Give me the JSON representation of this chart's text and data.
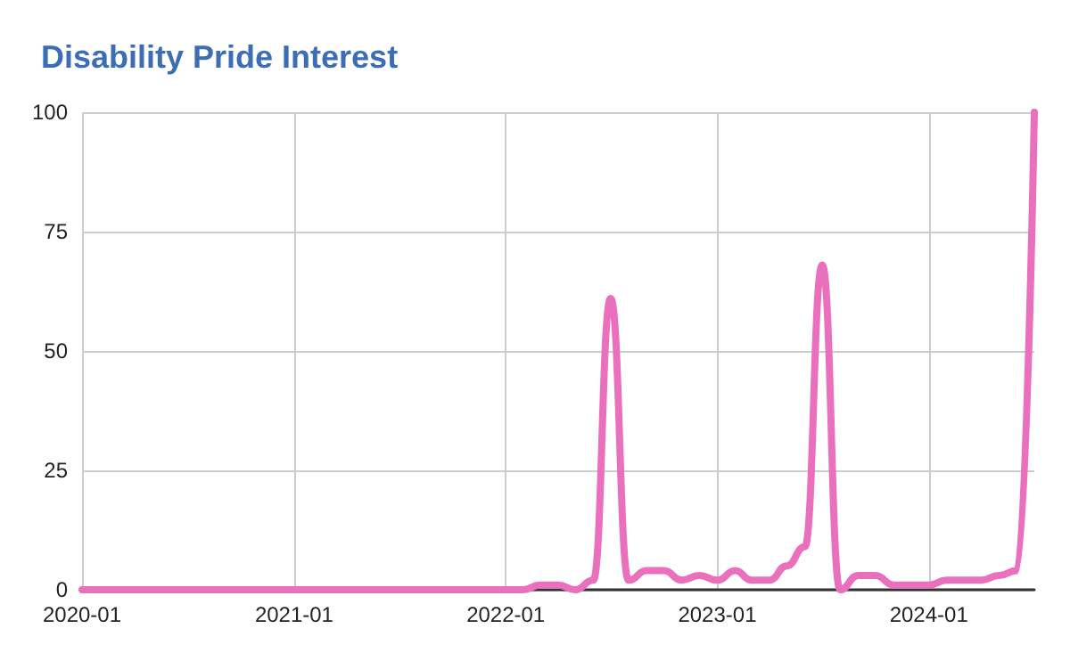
{
  "chart_data": {
    "type": "line",
    "title": "Disability Pride Interest",
    "x": [
      "2020-01",
      "2020-02",
      "2020-03",
      "2020-04",
      "2020-05",
      "2020-06",
      "2020-07",
      "2020-08",
      "2020-09",
      "2020-10",
      "2020-11",
      "2020-12",
      "2021-01",
      "2021-02",
      "2021-03",
      "2021-04",
      "2021-05",
      "2021-06",
      "2021-07",
      "2021-08",
      "2021-09",
      "2021-10",
      "2021-11",
      "2021-12",
      "2022-01",
      "2022-02",
      "2022-03",
      "2022-04",
      "2022-05",
      "2022-06",
      "2022-07",
      "2022-08",
      "2022-09",
      "2022-10",
      "2022-11",
      "2022-12",
      "2023-01",
      "2023-02",
      "2023-03",
      "2023-04",
      "2023-05",
      "2023-06",
      "2023-07",
      "2023-08",
      "2023-09",
      "2023-10",
      "2023-11",
      "2023-12",
      "2024-01",
      "2024-02",
      "2024-03",
      "2024-04",
      "2024-05",
      "2024-06",
      "2024-07"
    ],
    "series": [
      {
        "color": "#ea6fbd",
        "values": [
          0,
          0,
          0,
          0,
          0,
          0,
          0,
          0,
          0,
          0,
          0,
          0,
          0,
          0,
          0,
          0,
          0,
          0,
          0,
          0,
          0,
          0,
          0,
          0,
          0,
          0,
          1,
          1,
          0,
          2,
          61,
          2,
          4,
          4,
          2,
          3,
          2,
          4,
          2,
          2,
          5,
          9,
          68,
          0,
          3,
          3,
          1,
          1,
          1,
          2,
          2,
          2,
          3,
          4,
          100
        ]
      }
    ],
    "xlim": [
      "2020-01",
      "2024-07"
    ],
    "xticks": [
      "2020-01",
      "2021-01",
      "2022-01",
      "2023-01",
      "2024-01"
    ],
    "ylim": [
      0,
      100
    ],
    "yticks": [
      0,
      25,
      50,
      75,
      100
    ],
    "grid": true,
    "legend": false,
    "marker": "none",
    "line_style": "solid"
  }
}
